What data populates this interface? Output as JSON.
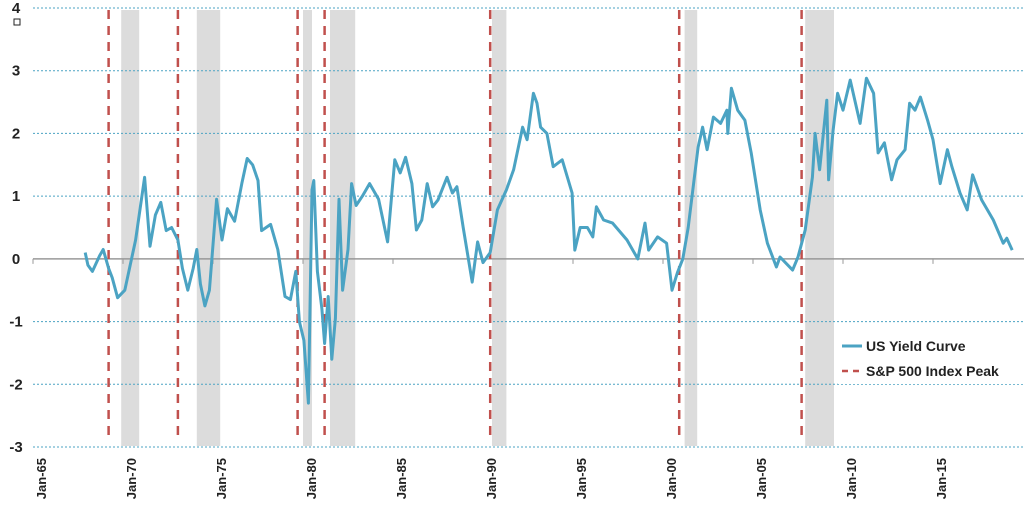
{
  "chart_data": {
    "type": "line",
    "title": "",
    "xlabel": "",
    "ylabel": "",
    "xlim": [
      1965,
      2020
    ],
    "ylim": [
      -3,
      4
    ],
    "yticks": [
      -3,
      -2,
      -1,
      0,
      1,
      2,
      3,
      4
    ],
    "xticks": [
      {
        "year": 1965,
        "label": "Jan-65"
      },
      {
        "year": 1970,
        "label": "Jan-70"
      },
      {
        "year": 1975,
        "label": "Jan-75"
      },
      {
        "year": 1980,
        "label": "Jan-80"
      },
      {
        "year": 1985,
        "label": "Jan-85"
      },
      {
        "year": 1990,
        "label": "Jan-90"
      },
      {
        "year": 1995,
        "label": "Jan-95"
      },
      {
        "year": 2000,
        "label": "Jan-00"
      },
      {
        "year": 2005,
        "label": "Jan-05"
      },
      {
        "year": 2010,
        "label": "Jan-10"
      },
      {
        "year": 2015,
        "label": "Jan-15"
      }
    ],
    "grid": "horizontal dotted",
    "legend_placement": "bottom-right",
    "colors": {
      "yield_curve": "#4ba3c3",
      "sp500_peak": "#c0504d",
      "recession": "#dcdcdc",
      "grid": "#4ba3c3",
      "zero_axis": "#999999"
    },
    "series": [
      {
        "name": "US Yield Curve",
        "points": [
          [
            1967.9,
            0.1
          ],
          [
            1968.05,
            -0.1
          ],
          [
            1968.3,
            -0.2
          ],
          [
            1968.7,
            0.05
          ],
          [
            1968.9,
            0.15
          ],
          [
            1969.2,
            -0.15
          ],
          [
            1969.4,
            -0.3
          ],
          [
            1969.7,
            -0.62
          ],
          [
            1970.1,
            -0.5
          ],
          [
            1970.4,
            -0.1
          ],
          [
            1970.7,
            0.3
          ],
          [
            1970.9,
            0.7
          ],
          [
            1971.2,
            1.3
          ],
          [
            1971.5,
            0.2
          ],
          [
            1971.8,
            0.7
          ],
          [
            1972.1,
            0.9
          ],
          [
            1972.4,
            0.45
          ],
          [
            1972.7,
            0.5
          ],
          [
            1973.05,
            0.3
          ],
          [
            1973.3,
            -0.15
          ],
          [
            1973.6,
            -0.5
          ],
          [
            1973.9,
            -0.15
          ],
          [
            1974.1,
            0.15
          ],
          [
            1974.3,
            -0.4
          ],
          [
            1974.55,
            -0.75
          ],
          [
            1974.8,
            -0.5
          ],
          [
            1975.2,
            0.95
          ],
          [
            1975.5,
            0.3
          ],
          [
            1975.8,
            0.8
          ],
          [
            1976.2,
            0.6
          ],
          [
            1976.6,
            1.2
          ],
          [
            1976.9,
            1.6
          ],
          [
            1977.2,
            1.5
          ],
          [
            1977.5,
            1.25
          ],
          [
            1977.7,
            0.45
          ],
          [
            1978.2,
            0.55
          ],
          [
            1978.6,
            0.15
          ],
          [
            1979.0,
            -0.6
          ],
          [
            1979.3,
            -0.65
          ],
          [
            1979.6,
            -0.2
          ],
          [
            1979.8,
            -1.0
          ],
          [
            1980.05,
            -1.3
          ],
          [
            1980.3,
            -2.3
          ],
          [
            1980.5,
            1.1
          ],
          [
            1980.6,
            1.25
          ],
          [
            1980.8,
            -0.2
          ],
          [
            1981.05,
            -0.8
          ],
          [
            1981.2,
            -1.35
          ],
          [
            1981.4,
            -0.6
          ],
          [
            1981.6,
            -1.6
          ],
          [
            1981.8,
            -0.95
          ],
          [
            1982.0,
            0.95
          ],
          [
            1982.2,
            -0.5
          ],
          [
            1982.5,
            0.15
          ],
          [
            1982.7,
            1.2
          ],
          [
            1982.95,
            0.85
          ],
          [
            1983.3,
            1.0
          ],
          [
            1983.7,
            1.2
          ],
          [
            1984.2,
            0.95
          ],
          [
            1984.7,
            0.27
          ],
          [
            1985.1,
            1.58
          ],
          [
            1985.4,
            1.37
          ],
          [
            1985.7,
            1.62
          ],
          [
            1986.05,
            1.2
          ],
          [
            1986.3,
            0.46
          ],
          [
            1986.6,
            0.62
          ],
          [
            1986.9,
            1.2
          ],
          [
            1987.2,
            0.83
          ],
          [
            1987.5,
            0.94
          ],
          [
            1988.0,
            1.3
          ],
          [
            1988.3,
            1.05
          ],
          [
            1988.55,
            1.15
          ],
          [
            1988.9,
            0.5
          ],
          [
            1989.4,
            -0.37
          ],
          [
            1989.7,
            0.27
          ],
          [
            1990.0,
            -0.06
          ],
          [
            1990.4,
            0.1
          ],
          [
            1990.8,
            0.78
          ],
          [
            1991.3,
            1.1
          ],
          [
            1991.7,
            1.42
          ],
          [
            1992.2,
            2.1
          ],
          [
            1992.45,
            1.9
          ],
          [
            1992.8,
            2.64
          ],
          [
            1993.0,
            2.48
          ],
          [
            1993.2,
            2.1
          ],
          [
            1993.55,
            2.0
          ],
          [
            1993.9,
            1.47
          ],
          [
            1994.4,
            1.58
          ],
          [
            1994.95,
            1.05
          ],
          [
            1995.1,
            0.14
          ],
          [
            1995.4,
            0.5
          ],
          [
            1995.8,
            0.5
          ],
          [
            1996.1,
            0.35
          ],
          [
            1996.3,
            0.83
          ],
          [
            1996.7,
            0.62
          ],
          [
            1997.2,
            0.57
          ],
          [
            1998.0,
            0.3
          ],
          [
            1998.6,
            0.0
          ],
          [
            1999.0,
            0.57
          ],
          [
            1999.2,
            0.14
          ],
          [
            1999.7,
            0.35
          ],
          [
            2000.2,
            0.25
          ],
          [
            2000.5,
            -0.5
          ],
          [
            2000.8,
            -0.22
          ],
          [
            2001.1,
            0.0
          ],
          [
            2001.4,
            0.5
          ],
          [
            2001.7,
            1.2
          ],
          [
            2001.95,
            1.78
          ],
          [
            2002.2,
            2.1
          ],
          [
            2002.45,
            1.74
          ],
          [
            2002.8,
            2.26
          ],
          [
            2003.2,
            2.16
          ],
          [
            2003.55,
            2.37
          ],
          [
            2003.6,
            2.0
          ],
          [
            2003.8,
            2.72
          ],
          [
            2004.15,
            2.37
          ],
          [
            2004.55,
            2.21
          ],
          [
            2004.9,
            1.69
          ],
          [
            2005.4,
            0.78
          ],
          [
            2005.8,
            0.25
          ],
          [
            2006.3,
            -0.13
          ],
          [
            2006.5,
            0.03
          ],
          [
            2007.2,
            -0.18
          ],
          [
            2007.5,
            0.03
          ],
          [
            2007.9,
            0.46
          ],
          [
            2008.3,
            1.3
          ],
          [
            2008.45,
            2.0
          ],
          [
            2008.7,
            1.42
          ],
          [
            2009.1,
            2.53
          ],
          [
            2009.2,
            1.26
          ],
          [
            2009.45,
            2.05
          ],
          [
            2009.7,
            2.64
          ],
          [
            2010.0,
            2.37
          ],
          [
            2010.4,
            2.85
          ],
          [
            2010.95,
            2.16
          ],
          [
            2011.3,
            2.88
          ],
          [
            2011.7,
            2.64
          ],
          [
            2011.95,
            1.69
          ],
          [
            2012.3,
            1.85
          ],
          [
            2012.7,
            1.26
          ],
          [
            2013.0,
            1.58
          ],
          [
            2013.45,
            1.74
          ],
          [
            2013.7,
            2.48
          ],
          [
            2014.0,
            2.37
          ],
          [
            2014.3,
            2.58
          ],
          [
            2014.7,
            2.21
          ],
          [
            2015.0,
            1.9
          ],
          [
            2015.4,
            1.2
          ],
          [
            2015.8,
            1.74
          ],
          [
            2016.05,
            1.47
          ],
          [
            2016.5,
            1.05
          ],
          [
            2016.9,
            0.78
          ],
          [
            2017.2,
            1.34
          ],
          [
            2017.7,
            0.94
          ],
          [
            2018.35,
            0.62
          ],
          [
            2018.9,
            0.25
          ],
          [
            2019.1,
            0.33
          ],
          [
            2019.4,
            0.14
          ]
        ]
      }
    ],
    "sp500_peaks": {
      "name": "S&P 500 Index Peak",
      "years": [
        1969.2,
        1973.05,
        1979.7,
        1981.2,
        1990.4,
        2000.9,
        2007.7
      ]
    },
    "recessions": [
      [
        1969.9,
        1970.9
      ],
      [
        1974.1,
        1975.4
      ],
      [
        1980.0,
        1980.5
      ],
      [
        1981.5,
        1982.9
      ],
      [
        1990.5,
        1991.3
      ],
      [
        2001.2,
        2001.9
      ],
      [
        2007.9,
        2009.5
      ]
    ],
    "legend": [
      {
        "label": "US Yield Curve",
        "style": "solid"
      },
      {
        "label": "S&P 500 Index Peak",
        "style": "dashed"
      }
    ]
  }
}
